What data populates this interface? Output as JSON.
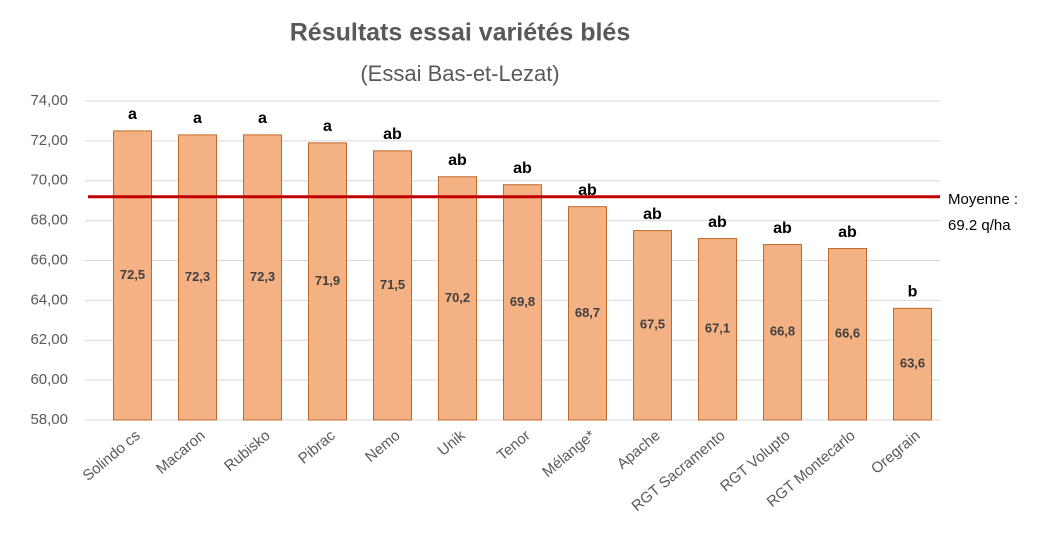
{
  "chart_data": {
    "type": "bar",
    "title": "Résultats essai variétés blés",
    "subtitle": "(Essai Bas-et-Lezat)",
    "categories": [
      "Solindo cs",
      "Macaron",
      "Rubisko",
      "Pibrac",
      "Nemo",
      "Unik",
      "Tenor",
      "Mélange*",
      "Apache",
      "RGT Sacramento",
      "RGT Volupto",
      "RGT Montecarlo",
      "Oregrain"
    ],
    "values": [
      72.5,
      72.3,
      72.3,
      71.9,
      71.5,
      70.2,
      69.8,
      68.7,
      67.5,
      67.1,
      66.8,
      66.6,
      63.6
    ],
    "value_labels": [
      "72,5",
      "72,3",
      "72,3",
      "71,9",
      "71,5",
      "70,2",
      "69,8",
      "68,7",
      "67,5",
      "67,1",
      "66,8",
      "66,6",
      "63,6"
    ],
    "letters": [
      "a",
      "a",
      "a",
      "a",
      "ab",
      "ab",
      "ab",
      "ab",
      "ab",
      "ab",
      "ab",
      "ab",
      "b"
    ],
    "color": "#f4b183",
    "edge_color": "#c0692a",
    "ylim": [
      58,
      74
    ],
    "yticks": [
      {
        "value": 58,
        "label": "58,00"
      },
      {
        "value": 60,
        "label": "60,00"
      },
      {
        "value": 62,
        "label": "62,00"
      },
      {
        "value": 64,
        "label": "64,00"
      },
      {
        "value": 66,
        "label": "66,00"
      },
      {
        "value": 68,
        "label": "68,00"
      },
      {
        "value": 70,
        "label": "70,00"
      },
      {
        "value": 72,
        "label": "72,00"
      },
      {
        "value": 74,
        "label": "74,00"
      }
    ],
    "grid": true,
    "reference_line": {
      "value": 69.2,
      "color": "#c00000",
      "label_lines": [
        "Moyenne :",
        "69.2 q/ha"
      ]
    }
  }
}
